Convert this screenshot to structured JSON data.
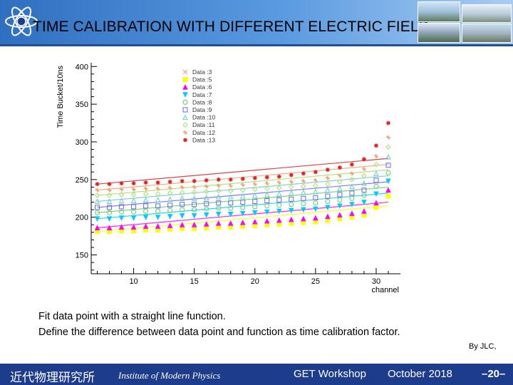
{
  "header": {
    "title": "TIME CALIBRATION WITH DIFFERENT ELECTRIC FIELD",
    "accent": "#2f6fc0"
  },
  "captions": {
    "line1": "Fit data point with a straight line function.",
    "line2": "Define the difference between data point and function as time calibration factor.",
    "byline": "By JLC,"
  },
  "footer": {
    "institute_cn": "近代物理研究所",
    "institute_en": "Institute of Modern Physics",
    "workshop": "GET Workshop",
    "date": "October 2018",
    "page": "–20–",
    "color": "#1e3c8c"
  },
  "chart_data": {
    "type": "scatter",
    "ylabel": "Time Bucket/10ns",
    "xlabel": "channel",
    "xlim": [
      6.5,
      32
    ],
    "ylim": [
      125,
      405
    ],
    "xticks": [
      10,
      15,
      20,
      25,
      30
    ],
    "yticks": [
      150,
      200,
      250,
      300,
      350,
      400
    ],
    "legend_position": "top-right",
    "x": [
      7,
      8,
      9,
      10,
      11,
      12,
      13,
      14,
      15,
      16,
      17,
      18,
      19,
      20,
      21,
      22,
      23,
      24,
      25,
      26,
      27,
      28,
      29,
      30,
      31
    ],
    "series": [
      {
        "name": "Data :3",
        "marker": "x",
        "color": "#e0a0a0",
        "values": []
      },
      {
        "name": "Data :5",
        "marker": "square-filled",
        "color": "#ffff00",
        "fit": [
          181,
          215
        ],
        "values": [
          181,
          181,
          182,
          182,
          183,
          183,
          184,
          185,
          185,
          186,
          187,
          187,
          188,
          189,
          190,
          191,
          192,
          193,
          194,
          196,
          198,
          200,
          203,
          213,
          228
        ]
      },
      {
        "name": "Data :6",
        "marker": "triangle-filled",
        "color": "#ff00ff",
        "fit": [
          186,
          220
        ],
        "values": [
          186,
          186,
          187,
          187,
          188,
          188,
          189,
          190,
          190,
          191,
          192,
          192,
          193,
          194,
          195,
          196,
          197,
          198,
          199,
          201,
          203,
          205,
          208,
          219,
          236
        ]
      },
      {
        "name": "Data :7",
        "marker": "triangle-down-filled",
        "color": "#00ccff",
        "fit": [
          198,
          232
        ],
        "values": [
          198,
          198,
          199,
          199,
          200,
          200,
          201,
          202,
          202,
          203,
          204,
          204,
          205,
          206,
          207,
          208,
          209,
          210,
          211,
          213,
          215,
          217,
          220,
          231,
          248
        ]
      },
      {
        "name": "Data :8",
        "marker": "circle",
        "color": "#66cc66",
        "fit": [
          206,
          240
        ],
        "values": [
          206,
          206,
          207,
          207,
          208,
          208,
          209,
          210,
          210,
          211,
          212,
          212,
          213,
          214,
          215,
          216,
          217,
          218,
          219,
          221,
          223,
          225,
          229,
          241,
          259
        ]
      },
      {
        "name": "Data :9",
        "marker": "square",
        "color": "#6666ff",
        "fit": [
          213,
          247
        ],
        "values": [
          213,
          213,
          214,
          214,
          215,
          215,
          216,
          217,
          217,
          218,
          219,
          219,
          220,
          221,
          222,
          223,
          224,
          225,
          226,
          228,
          230,
          232,
          236,
          249,
          269
        ]
      },
      {
        "name": "Data :10",
        "marker": "triangle",
        "color": "#66cccc",
        "fit": [
          221,
          255
        ],
        "values": [
          221,
          221,
          222,
          222,
          223,
          223,
          224,
          225,
          225,
          226,
          227,
          227,
          228,
          229,
          230,
          231,
          232,
          233,
          234,
          236,
          238,
          241,
          245,
          258,
          280
        ]
      },
      {
        "name": "Data :11",
        "marker": "diamond",
        "color": "#aadd66",
        "fit": [
          229,
          263
        ],
        "values": [
          229,
          229,
          230,
          230,
          231,
          231,
          232,
          233,
          233,
          234,
          235,
          235,
          236,
          237,
          238,
          239,
          240,
          241,
          242,
          244,
          247,
          250,
          255,
          270,
          293
        ]
      },
      {
        "name": "Data :12",
        "marker": "cross",
        "color": "#f0a070",
        "fit": [
          236,
          270
        ],
        "values": [
          236,
          236,
          237,
          237,
          238,
          238,
          239,
          240,
          240,
          241,
          242,
          242,
          243,
          244,
          245,
          246,
          247,
          248,
          249,
          252,
          255,
          258,
          264,
          281,
          306
        ]
      },
      {
        "name": "Data :13",
        "marker": "star",
        "color": "#dd2222",
        "fit": [
          244,
          278
        ],
        "values": [
          244,
          244,
          245,
          245,
          246,
          246,
          247,
          248,
          248,
          249,
          250,
          250,
          251,
          252,
          253,
          254,
          256,
          258,
          260,
          263,
          266,
          270,
          277,
          295,
          325
        ]
      }
    ]
  }
}
